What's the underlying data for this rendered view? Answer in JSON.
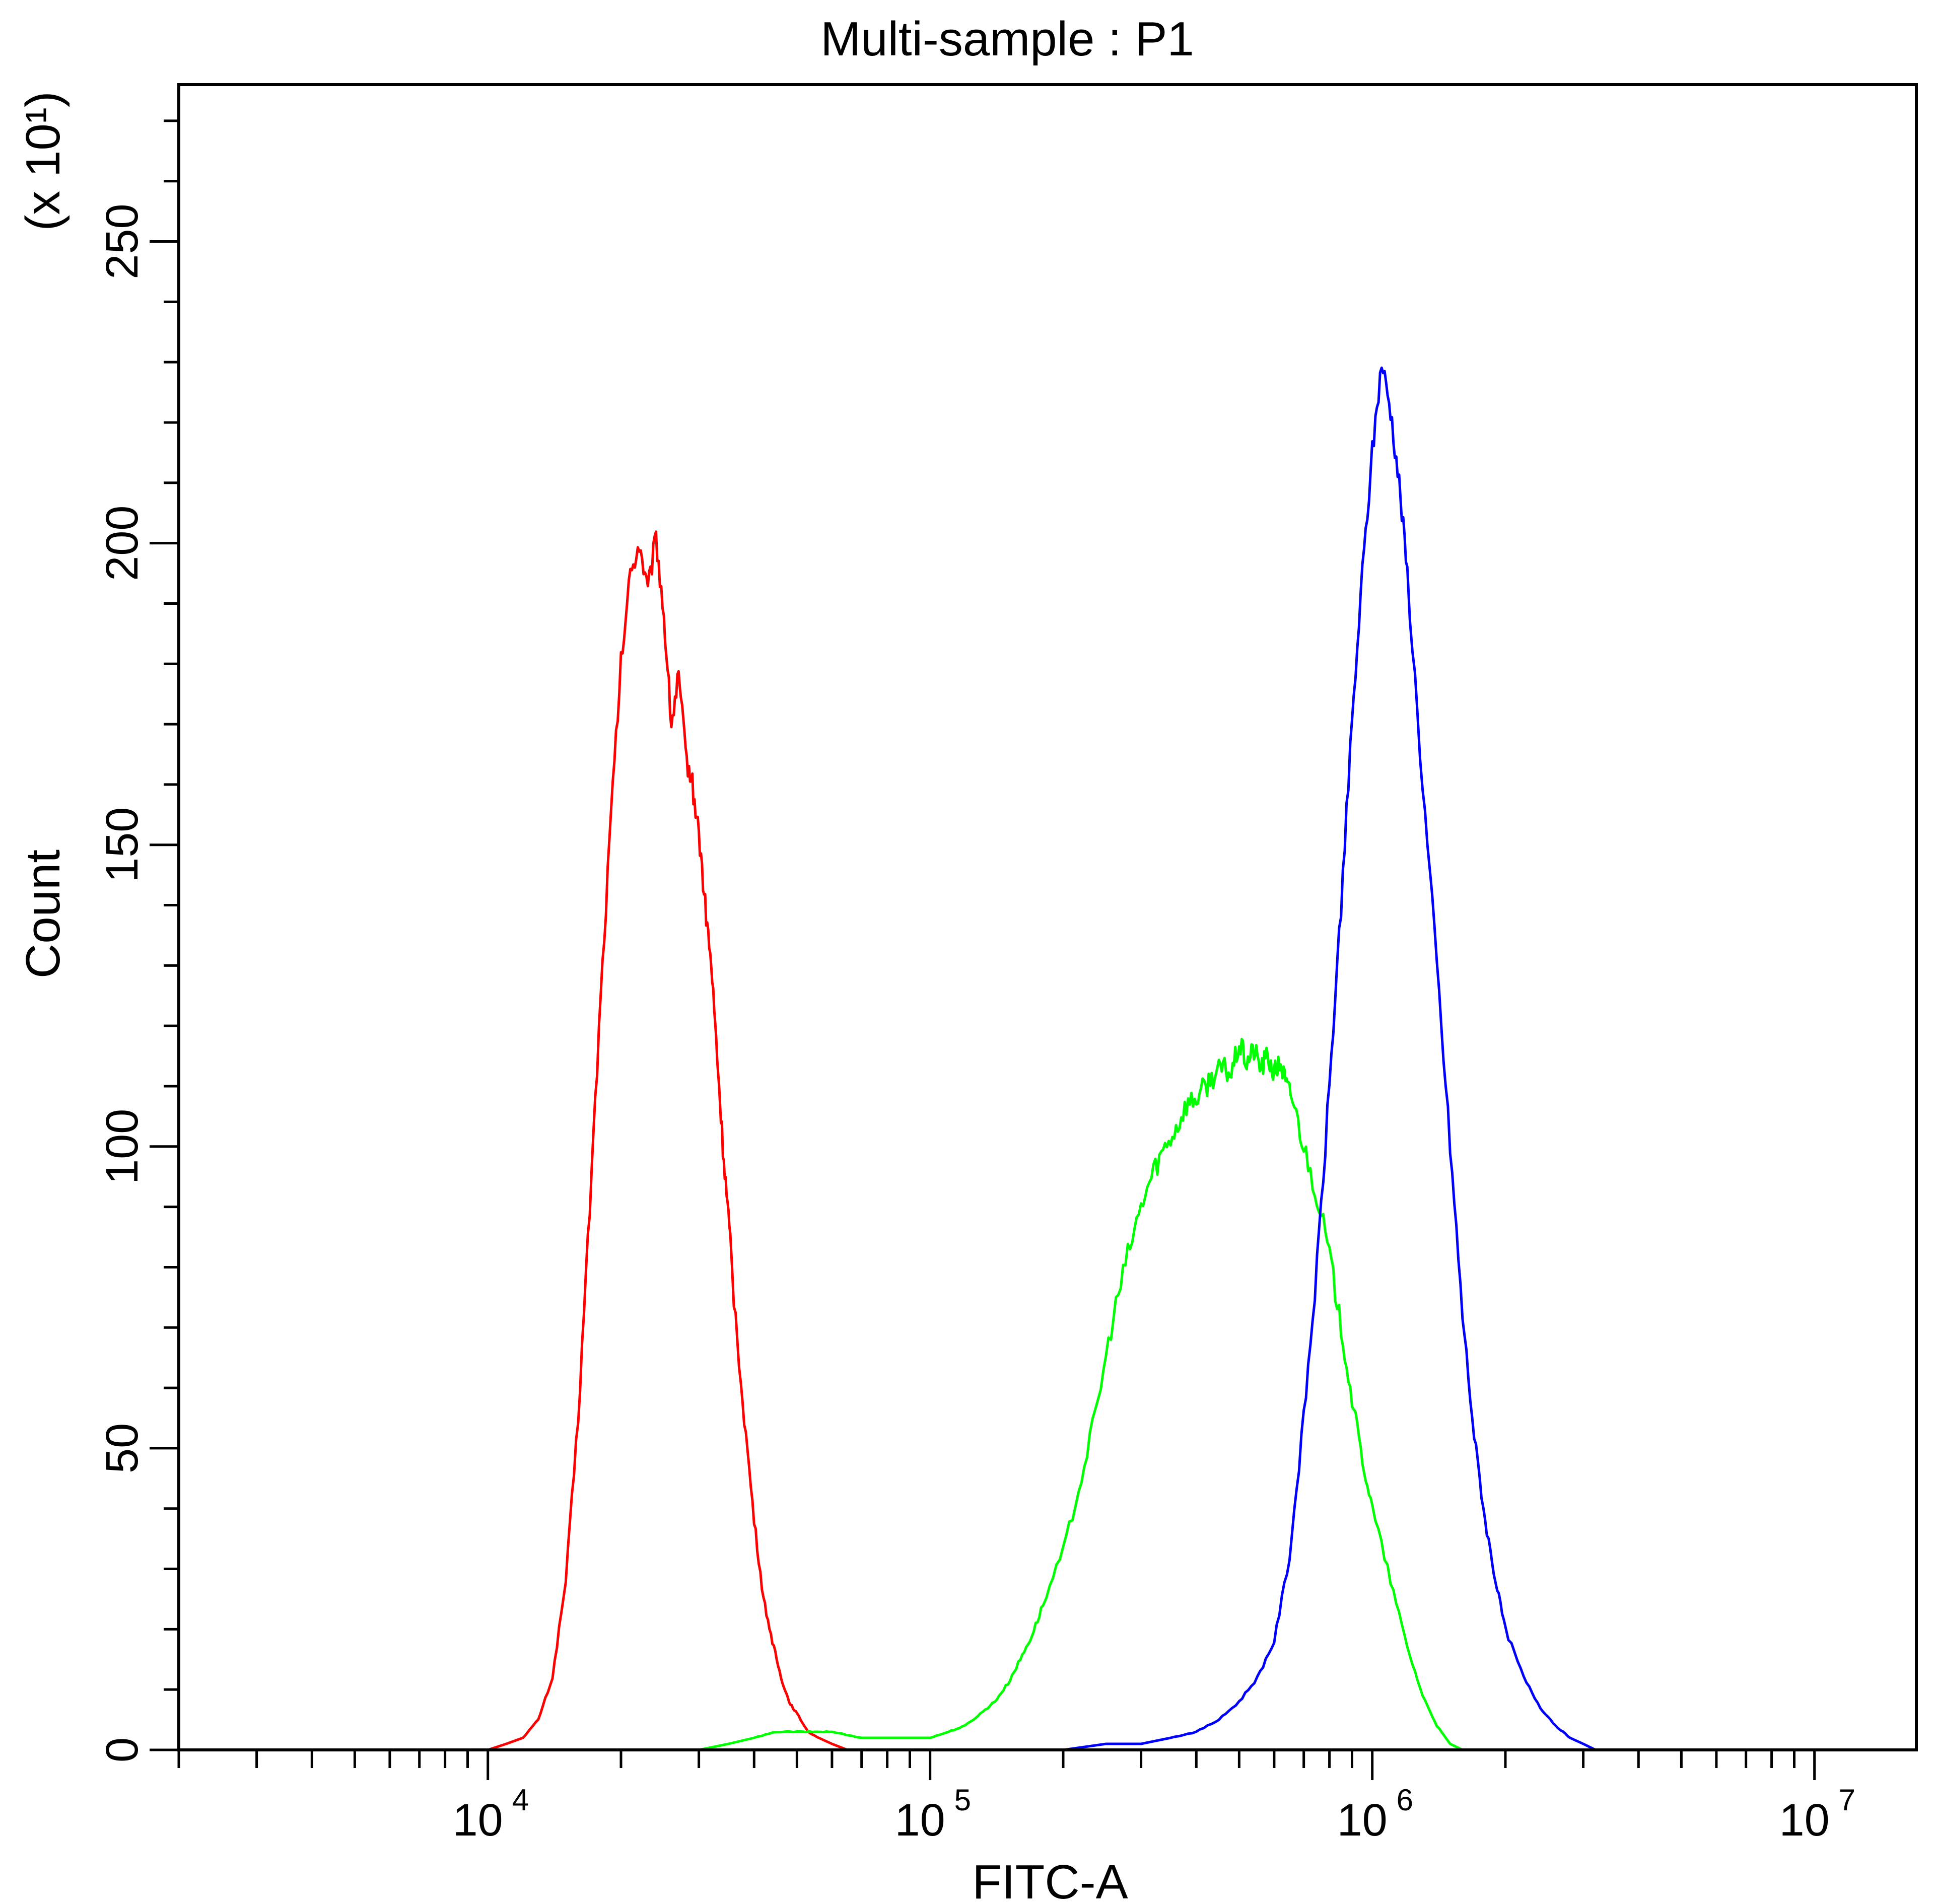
{
  "chart_data": {
    "type": "line",
    "title": "Multi-sample : P1",
    "xlabel": "FITC-A",
    "ylabel": "Count",
    "ylabel_multiplier": "(x 10¹)",
    "x_scale": "log",
    "xlim": [
      2000,
      17000000
    ],
    "ylim": [
      0,
      276
    ],
    "grid": false,
    "legend": "none",
    "x_ticks": [
      {
        "value": 10000,
        "base": "10",
        "exp": "4"
      },
      {
        "value": 100000,
        "base": "10",
        "exp": "5"
      },
      {
        "value": 1000000,
        "base": "10",
        "exp": "6"
      },
      {
        "value": 10000000,
        "base": "10",
        "exp": "7"
      }
    ],
    "y_ticks": [
      0,
      50,
      100,
      150,
      200,
      250
    ],
    "series": [
      {
        "color": "#ff0000",
        "x": [
          10000,
          11000,
          12000,
          13000,
          14000,
          15000,
          16000,
          17000,
          18000,
          19000,
          20000,
          21000,
          22000,
          23000,
          24000,
          25000,
          26000,
          27000,
          28000,
          29000,
          30000,
          31000,
          32000,
          33000,
          34000,
          35000,
          36000,
          38000,
          40000,
          42000,
          44000,
          46000,
          48000,
          50000,
          53000,
          56000,
          60000,
          65000,
          70000,
          75000
        ],
        "y": [
          0,
          1,
          2,
          5,
          12,
          28,
          55,
          90,
          125,
          155,
          180,
          195,
          200,
          192,
          201,
          188,
          170,
          178,
          165,
          160,
          152,
          140,
          130,
          115,
          100,
          88,
          75,
          55,
          38,
          25,
          18,
          12,
          8,
          6,
          3,
          2,
          1,
          0,
          0,
          0
        ]
      },
      {
        "color": "#00ff00",
        "x": [
          30000,
          35000,
          40000,
          45000,
          50000,
          55000,
          60000,
          70000,
          80000,
          90000,
          100000,
          110000,
          120000,
          130000,
          140000,
          150000,
          160000,
          170000,
          180000,
          200000,
          220000,
          240000,
          260000,
          280000,
          300000,
          320000,
          340000,
          360000,
          380000,
          400000,
          420000,
          440000,
          460000,
          480000,
          500000,
          520000,
          540000,
          560000,
          580000,
          600000,
          620000,
          640000,
          660000,
          700000,
          750000,
          800000,
          850000,
          900000,
          950000,
          1000000,
          1100000,
          1200000,
          1300000,
          1400000,
          1500000,
          1600000
        ],
        "y": [
          0,
          1,
          2,
          3,
          3,
          3,
          3,
          2,
          2,
          2,
          2,
          3,
          4,
          6,
          8,
          11,
          15,
          19,
          24,
          33,
          45,
          58,
          72,
          82,
          90,
          96,
          100,
          103,
          107,
          108,
          110,
          112,
          113,
          112,
          117,
          114,
          116,
          113,
          115,
          112,
          114,
          110,
          108,
          100,
          92,
          82,
          70,
          58,
          48,
          40,
          28,
          17,
          9,
          4,
          1,
          0
        ]
      },
      {
        "color": "#0000ff",
        "x": [
          100000,
          150000,
          200000,
          250000,
          300000,
          350000,
          400000,
          450000,
          500000,
          550000,
          600000,
          650000,
          700000,
          750000,
          800000,
          850000,
          900000,
          950000,
          1000000,
          1050000,
          1100000,
          1150000,
          1200000,
          1300000,
          1400000,
          1500000,
          1600000,
          1700000,
          1800000,
          1900000,
          2000000,
          2200000,
          2400000,
          2600000,
          2800000,
          3000000,
          3200000
        ],
        "y": [
          0,
          0,
          0,
          1,
          1,
          2,
          3,
          5,
          8,
          12,
          18,
          32,
          55,
          80,
          110,
          140,
          170,
          195,
          215,
          230,
          222,
          210,
          195,
          160,
          130,
          100,
          72,
          52,
          38,
          28,
          20,
          12,
          7,
          4,
          2,
          1,
          0
        ]
      }
    ]
  }
}
